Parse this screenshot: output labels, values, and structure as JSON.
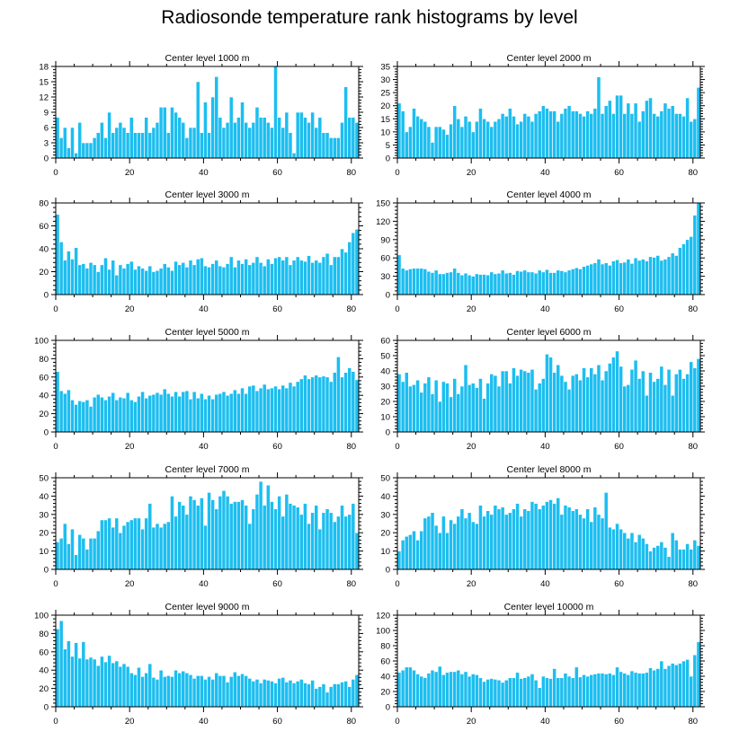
{
  "title": "Radiosonde temperature rank histograms by level",
  "colors": {
    "bar": "#1CBEF0",
    "bar_edge": "#ffffff",
    "axis": "#000000"
  },
  "chart_data": [
    {
      "type": "bar",
      "title": "Center level 1000 m",
      "xlabel": "",
      "ylabel": "",
      "xlim": [
        0,
        82
      ],
      "ylim": [
        0,
        18
      ],
      "xticks": [
        0,
        20,
        40,
        60,
        80
      ],
      "yticks": [
        0,
        3,
        6,
        9,
        12,
        15,
        18
      ],
      "x_start": 0,
      "values": [
        8,
        4,
        6,
        2,
        6,
        1,
        7,
        3,
        3,
        3,
        4,
        5,
        7,
        4,
        9,
        5,
        6,
        7,
        6,
        5,
        8,
        5,
        5,
        5,
        8,
        5,
        6,
        7,
        10,
        10,
        5,
        10,
        9,
        8,
        7,
        4,
        6,
        6,
        15,
        5,
        11,
        5,
        12,
        16,
        8,
        6,
        7,
        12,
        7,
        8,
        11,
        7,
        6,
        7,
        10,
        8,
        8,
        7,
        6,
        18,
        8,
        6,
        9,
        5,
        1,
        9,
        9,
        8,
        7,
        9,
        6,
        8,
        5,
        5,
        4,
        4,
        4,
        7,
        14,
        8,
        8,
        7
      ]
    },
    {
      "type": "bar",
      "title": "Center level 2000 m",
      "xlabel": "",
      "ylabel": "",
      "xlim": [
        0,
        82
      ],
      "ylim": [
        0,
        35
      ],
      "xticks": [
        0,
        20,
        40,
        60,
        80
      ],
      "yticks": [
        0,
        5,
        10,
        15,
        20,
        25,
        30,
        35
      ],
      "x_start": 0,
      "values": [
        21,
        18,
        10,
        12,
        19,
        16,
        15,
        14,
        12,
        6,
        12,
        12,
        11,
        9,
        13,
        20,
        15,
        12,
        16,
        14,
        10,
        14,
        19,
        15,
        14,
        12,
        14,
        15,
        17,
        16,
        19,
        16,
        13,
        14,
        17,
        16,
        14,
        17,
        18,
        20,
        19,
        18,
        18,
        14,
        17,
        19,
        20,
        18,
        18,
        17,
        16,
        18,
        17,
        19,
        31,
        17,
        20,
        22,
        17,
        24,
        24,
        17,
        21,
        17,
        21,
        14,
        18,
        22,
        23,
        17,
        16,
        18,
        21,
        19,
        20,
        17,
        17,
        16,
        23,
        14,
        15,
        27
      ]
    },
    {
      "type": "bar",
      "title": "Center level 3000 m",
      "xlabel": "",
      "ylabel": "",
      "xlim": [
        0,
        82
      ],
      "ylim": [
        0,
        80
      ],
      "xticks": [
        0,
        20,
        40,
        60,
        80
      ],
      "yticks": [
        0,
        20,
        40,
        60,
        80
      ],
      "x_start": 0,
      "values": [
        70,
        46,
        30,
        38,
        31,
        41,
        26,
        27,
        23,
        28,
        26,
        20,
        26,
        32,
        22,
        30,
        17,
        26,
        23,
        27,
        29,
        22,
        25,
        23,
        21,
        25,
        20,
        21,
        23,
        27,
        24,
        21,
        29,
        26,
        28,
        24,
        30,
        26,
        31,
        32,
        25,
        24,
        27,
        30,
        25,
        24,
        27,
        33,
        24,
        30,
        27,
        31,
        26,
        28,
        33,
        28,
        25,
        31,
        27,
        32,
        33,
        30,
        33,
        26,
        30,
        33,
        30,
        29,
        34,
        28,
        30,
        28,
        33,
        36,
        26,
        33,
        33,
        40,
        37,
        46,
        54,
        57
      ]
    },
    {
      "type": "bar",
      "title": "Center level 4000 m",
      "xlabel": "",
      "ylabel": "",
      "xlim": [
        0,
        82
      ],
      "ylim": [
        0,
        150
      ],
      "xticks": [
        0,
        20,
        40,
        60,
        80
      ],
      "yticks": [
        0,
        30,
        60,
        90,
        120,
        150
      ],
      "x_start": 0,
      "values": [
        65,
        43,
        40,
        42,
        43,
        43,
        43,
        42,
        38,
        36,
        40,
        34,
        34,
        36,
        37,
        43,
        36,
        32,
        35,
        32,
        30,
        34,
        33,
        33,
        32,
        37,
        34,
        35,
        40,
        35,
        36,
        33,
        39,
        38,
        40,
        37,
        37,
        35,
        40,
        37,
        41,
        36,
        36,
        40,
        39,
        37,
        40,
        42,
        44,
        42,
        46,
        48,
        50,
        52,
        58,
        50,
        52,
        48,
        55,
        57,
        52,
        53,
        58,
        51,
        60,
        56,
        58,
        55,
        62,
        61,
        64,
        56,
        58,
        62,
        68,
        64,
        77,
        83,
        90,
        95,
        130,
        150
      ]
    },
    {
      "type": "bar",
      "title": "Center level 5000 m",
      "xlabel": "",
      "ylabel": "",
      "xlim": [
        0,
        82
      ],
      "ylim": [
        0,
        100
      ],
      "xticks": [
        0,
        20,
        40,
        60,
        80
      ],
      "yticks": [
        0,
        20,
        40,
        60,
        80,
        100
      ],
      "x_start": 0,
      "values": [
        66,
        45,
        42,
        46,
        35,
        30,
        34,
        33,
        35,
        28,
        38,
        41,
        38,
        35,
        39,
        43,
        35,
        38,
        37,
        43,
        35,
        33,
        39,
        44,
        37,
        40,
        41,
        43,
        41,
        47,
        42,
        39,
        44,
        39,
        44,
        45,
        36,
        44,
        37,
        42,
        36,
        40,
        36,
        41,
        42,
        44,
        40,
        42,
        46,
        42,
        48,
        42,
        50,
        51,
        45,
        48,
        52,
        47,
        48,
        50,
        47,
        51,
        48,
        54,
        50,
        55,
        58,
        62,
        58,
        60,
        62,
        60,
        61,
        60,
        55,
        65,
        82,
        60,
        65,
        70,
        66,
        57
      ]
    },
    {
      "type": "bar",
      "title": "Center level 6000 m",
      "xlabel": "",
      "ylabel": "",
      "xlim": [
        0,
        82
      ],
      "ylim": [
        0,
        60
      ],
      "xticks": [
        0,
        20,
        40,
        60,
        80
      ],
      "yticks": [
        0,
        10,
        20,
        30,
        40,
        50,
        60
      ],
      "x_start": 0,
      "values": [
        38,
        33,
        39,
        30,
        31,
        34,
        26,
        32,
        36,
        25,
        34,
        20,
        33,
        32,
        23,
        35,
        25,
        30,
        44,
        31,
        32,
        29,
        35,
        22,
        32,
        38,
        37,
        30,
        40,
        40,
        32,
        42,
        37,
        41,
        40,
        39,
        41,
        28,
        32,
        35,
        51,
        49,
        39,
        44,
        37,
        33,
        28,
        37,
        38,
        34,
        42,
        36,
        42,
        38,
        44,
        34,
        40,
        45,
        49,
        53,
        43,
        30,
        31,
        41,
        47,
        35,
        40,
        24,
        39,
        33,
        35,
        43,
        31,
        41,
        24,
        38,
        41,
        35,
        38,
        46,
        42,
        48
      ]
    },
    {
      "type": "bar",
      "title": "Center level 7000 m",
      "xlabel": "",
      "ylabel": "",
      "xlim": [
        0,
        82
      ],
      "ylim": [
        0,
        50
      ],
      "xticks": [
        0,
        20,
        40,
        60,
        80
      ],
      "yticks": [
        0,
        10,
        20,
        30,
        40,
        50
      ],
      "x_start": 0,
      "values": [
        15,
        17,
        25,
        14,
        22,
        8,
        19,
        17,
        11,
        17,
        17,
        21,
        27,
        27,
        28,
        23,
        28,
        20,
        24,
        26,
        27,
        28,
        28,
        22,
        28,
        36,
        23,
        25,
        23,
        25,
        26,
        40,
        29,
        37,
        35,
        30,
        40,
        38,
        35,
        39,
        24,
        42,
        38,
        33,
        40,
        43,
        40,
        36,
        37,
        37,
        38,
        35,
        25,
        33,
        41,
        48,
        35,
        46,
        37,
        33,
        40,
        29,
        41,
        36,
        35,
        34,
        30,
        36,
        25,
        31,
        35,
        22,
        31,
        33,
        31,
        26,
        29,
        35,
        29,
        30,
        36,
        20
      ]
    },
    {
      "type": "bar",
      "title": "Center level 8000 m",
      "xlabel": "",
      "ylabel": "",
      "xlim": [
        0,
        82
      ],
      "ylim": [
        0,
        50
      ],
      "xticks": [
        0,
        20,
        40,
        60,
        80
      ],
      "yticks": [
        0,
        10,
        20,
        30,
        40,
        50
      ],
      "x_start": 0,
      "values": [
        10,
        16,
        18,
        19,
        21,
        16,
        21,
        28,
        29,
        31,
        24,
        20,
        29,
        20,
        27,
        25,
        29,
        33,
        28,
        31,
        26,
        25,
        35,
        29,
        32,
        30,
        35,
        33,
        34,
        30,
        31,
        33,
        36,
        29,
        33,
        32,
        37,
        36,
        33,
        35,
        37,
        38,
        36,
        39,
        30,
        35,
        34,
        32,
        33,
        30,
        28,
        33,
        26,
        34,
        30,
        28,
        42,
        23,
        22,
        25,
        22,
        20,
        17,
        20,
        15,
        19,
        17,
        14,
        10,
        12,
        13,
        15,
        12,
        7,
        20,
        16,
        11,
        11,
        14,
        11,
        16,
        13
      ]
    },
    {
      "type": "bar",
      "title": "Center level 9000 m",
      "xlabel": "",
      "ylabel": "",
      "xlim": [
        0,
        82
      ],
      "ylim": [
        0,
        100
      ],
      "xticks": [
        0,
        20,
        40,
        60,
        80
      ],
      "yticks": [
        0,
        20,
        40,
        60,
        80,
        100
      ],
      "x_start": 0,
      "values": [
        85,
        94,
        63,
        72,
        55,
        70,
        53,
        71,
        52,
        54,
        52,
        45,
        55,
        49,
        56,
        48,
        50,
        44,
        47,
        44,
        37,
        35,
        43,
        33,
        37,
        47,
        32,
        30,
        40,
        33,
        34,
        33,
        40,
        37,
        39,
        37,
        35,
        31,
        34,
        34,
        30,
        33,
        30,
        37,
        34,
        34,
        27,
        33,
        38,
        34,
        36,
        34,
        31,
        28,
        30,
        26,
        30,
        29,
        28,
        26,
        31,
        32,
        27,
        29,
        26,
        28,
        30,
        26,
        25,
        29,
        20,
        22,
        25,
        16,
        22,
        25,
        25,
        27,
        28,
        22,
        30,
        35
      ]
    },
    {
      "type": "bar",
      "title": "Center level 10000 m",
      "xlabel": "",
      "ylabel": "",
      "xlim": [
        0,
        82
      ],
      "ylim": [
        0,
        120
      ],
      "xticks": [
        0,
        20,
        40,
        60,
        80
      ],
      "yticks": [
        0,
        20,
        40,
        60,
        80,
        100,
        120
      ],
      "x_start": 0,
      "values": [
        45,
        48,
        52,
        52,
        48,
        43,
        40,
        38,
        44,
        48,
        46,
        53,
        42,
        45,
        46,
        46,
        48,
        43,
        46,
        40,
        43,
        42,
        38,
        33,
        36,
        37,
        36,
        35,
        32,
        35,
        38,
        38,
        45,
        37,
        38,
        40,
        43,
        35,
        25,
        40,
        38,
        37,
        50,
        38,
        38,
        44,
        40,
        38,
        52,
        39,
        42,
        40,
        42,
        43,
        44,
        44,
        43,
        44,
        42,
        52,
        46,
        44,
        42,
        47,
        45,
        44,
        44,
        45,
        51,
        48,
        50,
        60,
        50,
        54,
        57,
        55,
        57,
        60,
        62,
        40,
        68,
        85,
        100
      ]
    }
  ]
}
